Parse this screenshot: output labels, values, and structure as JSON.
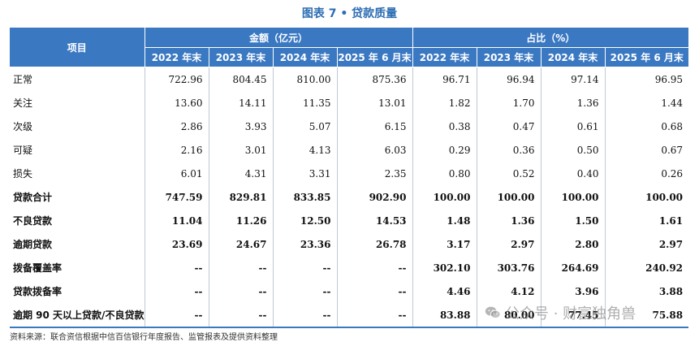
{
  "title": "图表 7 • 贷款质量",
  "header": {
    "item": "项目",
    "amount_group": "金额（亿元）",
    "ratio_group": "占比（%）",
    "periods": [
      "2022 年末",
      "2023 年末",
      "2024 年末",
      "2025 年 6 月末"
    ]
  },
  "rows": [
    {
      "name": "正常",
      "bold": false,
      "amount": [
        "722.96",
        "804.45",
        "810.00",
        "875.36"
      ],
      "ratio": [
        "96.71",
        "96.94",
        "97.14",
        "96.95"
      ]
    },
    {
      "name": "关注",
      "bold": false,
      "amount": [
        "13.60",
        "14.11",
        "11.35",
        "13.01"
      ],
      "ratio": [
        "1.82",
        "1.70",
        "1.36",
        "1.44"
      ]
    },
    {
      "name": "次级",
      "bold": false,
      "amount": [
        "2.86",
        "3.93",
        "5.07",
        "6.15"
      ],
      "ratio": [
        "0.38",
        "0.47",
        "0.61",
        "0.68"
      ]
    },
    {
      "name": "可疑",
      "bold": false,
      "amount": [
        "2.16",
        "3.01",
        "4.13",
        "6.03"
      ],
      "ratio": [
        "0.29",
        "0.36",
        "0.50",
        "0.67"
      ]
    },
    {
      "name": "损失",
      "bold": false,
      "amount": [
        "6.01",
        "4.31",
        "3.31",
        "2.35"
      ],
      "ratio": [
        "0.80",
        "0.52",
        "0.40",
        "0.26"
      ]
    },
    {
      "name": "贷款合计",
      "bold": true,
      "amount": [
        "747.59",
        "829.81",
        "833.85",
        "902.90"
      ],
      "ratio": [
        "100.00",
        "100.00",
        "100.00",
        "100.00"
      ]
    },
    {
      "name": "不良贷款",
      "bold": true,
      "amount": [
        "11.04",
        "11.26",
        "12.50",
        "14.53"
      ],
      "ratio": [
        "1.48",
        "1.36",
        "1.50",
        "1.61"
      ]
    },
    {
      "name": "逾期贷款",
      "bold": true,
      "amount": [
        "23.69",
        "24.67",
        "23.36",
        "26.78"
      ],
      "ratio": [
        "3.17",
        "2.97",
        "2.80",
        "2.97"
      ]
    },
    {
      "name": "拨备覆盖率",
      "bold": true,
      "amount": [
        "--",
        "--",
        "--",
        "--"
      ],
      "ratio": [
        "302.10",
        "303.76",
        "264.69",
        "240.92"
      ]
    },
    {
      "name": "贷款拨备率",
      "bold": true,
      "amount": [
        "--",
        "--",
        "--",
        "--"
      ],
      "ratio": [
        "4.46",
        "4.12",
        "3.96",
        "3.88"
      ]
    },
    {
      "name": "逾期 90 天以上贷款/不良贷款",
      "bold": true,
      "amount": [
        "--",
        "--",
        "--",
        "--"
      ],
      "ratio": [
        "83.88",
        "80.00",
        "77.45",
        "75.88"
      ]
    }
  ],
  "source": "资料来源：联合资信根据中信百信银行年度报告、监管报表及提供资料整理",
  "watermark": {
    "text": "公众号 · 财富独角兽",
    "icon": "wechat-icon"
  },
  "colors": {
    "header_bg": "#3a78c2",
    "title": "#2c6db3"
  }
}
